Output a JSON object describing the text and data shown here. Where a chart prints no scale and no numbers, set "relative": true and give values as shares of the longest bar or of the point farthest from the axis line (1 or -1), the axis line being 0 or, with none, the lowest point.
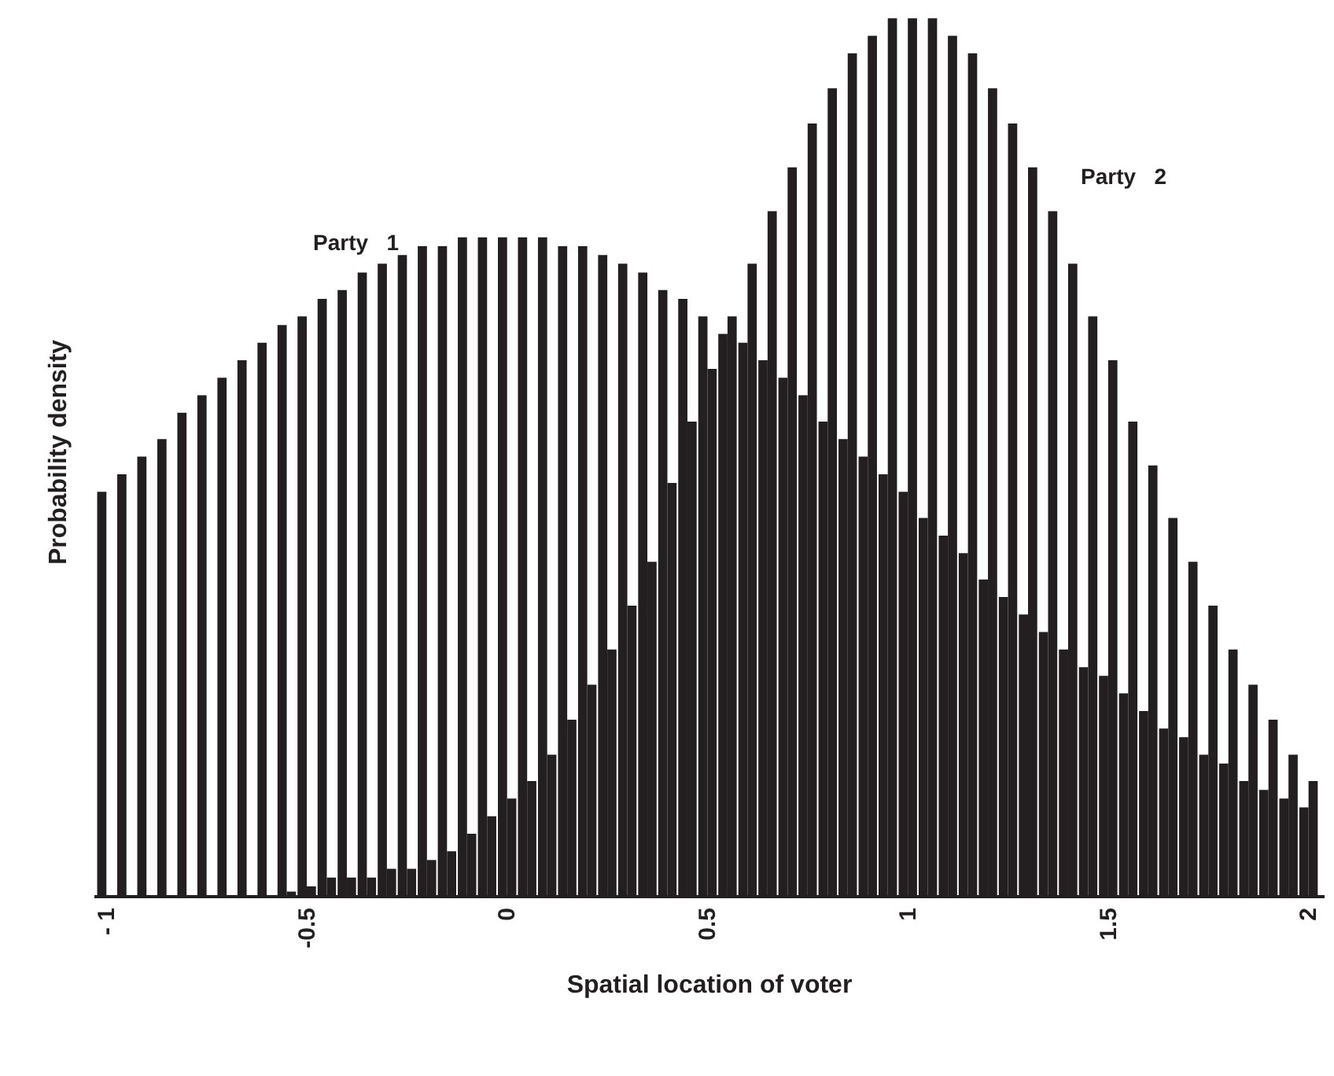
{
  "chart_data": {
    "type": "bar",
    "relative": true,
    "xlabel": "Spatial location of voter",
    "ylabel": "Probability density",
    "x": [
      -1,
      -0.95,
      -0.9,
      -0.85,
      -0.8,
      -0.75,
      -0.7,
      -0.65,
      -0.6,
      -0.55,
      -0.5,
      -0.45,
      -0.4,
      -0.35,
      -0.3,
      -0.25,
      -0.2,
      -0.15,
      -0.1,
      -0.05,
      0,
      0.05,
      0.1,
      0.15,
      0.2,
      0.25,
      0.3,
      0.35,
      0.4,
      0.45,
      0.5,
      0.55,
      0.6,
      0.65,
      0.7,
      0.75,
      0.8,
      0.85,
      0.9,
      0.95,
      1,
      1.05,
      1.1,
      1.15,
      1.2,
      1.25,
      1.3,
      1.35,
      1.4,
      1.45,
      1.5,
      1.55,
      1.6,
      1.65,
      1.7,
      1.75,
      1.8,
      1.85,
      1.9,
      1.95,
      2
    ],
    "xlim": [
      -1.03,
      2.04
    ],
    "xticks": [
      {
        "value": -1,
        "label": "- 1"
      },
      -0.5,
      0,
      0.5,
      1,
      1.5,
      2
    ],
    "series": [
      {
        "color": "#231f20",
        "values": [
          0.46,
          0.48,
          0.5,
          0.52,
          0.55,
          0.57,
          0.59,
          0.61,
          0.63,
          0.65,
          0.66,
          0.68,
          0.69,
          0.71,
          0.72,
          0.73,
          0.74,
          0.74,
          0.75,
          0.75,
          0.75,
          0.75,
          0.75,
          0.74,
          0.74,
          0.73,
          0.72,
          0.71,
          0.69,
          0.68,
          0.66,
          0.64,
          0.63,
          0.61,
          0.59,
          0.57,
          0.54,
          0.52,
          0.5,
          0.48,
          0.46,
          0.43,
          0.41,
          0.39,
          0.36,
          0.34,
          0.32,
          0.3,
          0.28,
          0.26,
          0.25,
          0.23,
          0.21,
          0.19,
          0.18,
          0.16,
          0.15,
          0.13,
          0.12,
          0.11,
          0.1
        ]
      },
      {
        "color": "#231f20",
        "values": [
          0,
          0,
          0,
          0,
          0,
          0,
          0,
          0,
          0,
          0.004,
          0.01,
          0.02,
          0.02,
          0.02,
          0.03,
          0.03,
          0.04,
          0.05,
          0.07,
          0.09,
          0.11,
          0.13,
          0.16,
          0.2,
          0.24,
          0.28,
          0.33,
          0.38,
          0.47,
          0.54,
          0.6,
          0.66,
          0.72,
          0.78,
          0.83,
          0.88,
          0.92,
          0.96,
          0.98,
          1.0,
          1.0,
          1.0,
          0.98,
          0.96,
          0.92,
          0.88,
          0.83,
          0.78,
          0.72,
          0.66,
          0.61,
          0.54,
          0.49,
          0.43,
          0.38,
          0.33,
          0.28,
          0.24,
          0.2,
          0.16,
          0.13
        ]
      }
    ],
    "annotations": [
      "Party   1",
      "Party   2"
    ]
  }
}
